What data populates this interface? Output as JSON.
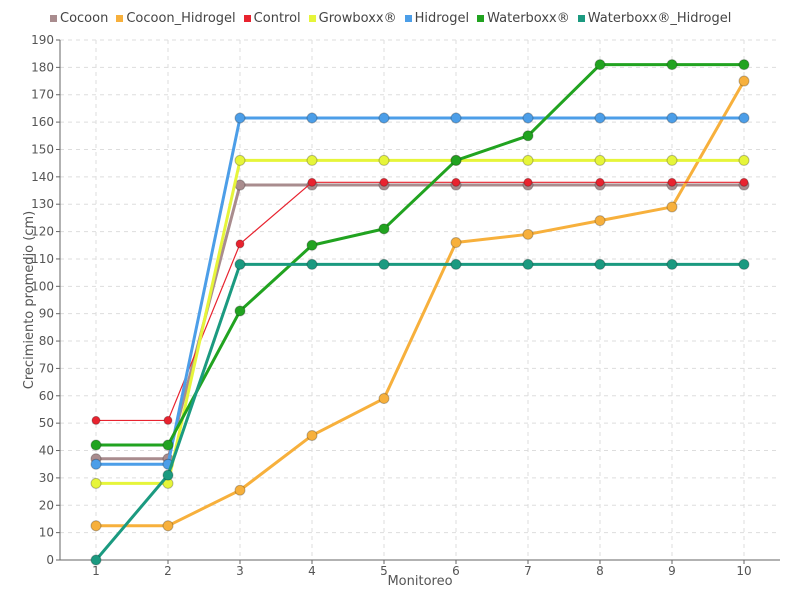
{
  "chart_data": {
    "type": "line",
    "title": "",
    "xlabel": "Monitoreo",
    "ylabel": "Crecimiento promedio (cm)",
    "x": [
      1,
      2,
      3,
      4,
      5,
      6,
      7,
      8,
      9,
      10
    ],
    "ylim": [
      0,
      190
    ],
    "ytick_step": 10,
    "grid": true,
    "legend_position": "top",
    "series": [
      {
        "name": "Cocoon",
        "color": "#a98c8e",
        "values": [
          37,
          37,
          137,
          137,
          137,
          137,
          137,
          137,
          137,
          137
        ]
      },
      {
        "name": "Cocoon_Hidrogel",
        "color": "#f7b03c",
        "values": [
          12.5,
          12.5,
          25.5,
          45.5,
          59,
          116,
          119,
          124,
          129,
          175
        ]
      },
      {
        "name": "Control",
        "color": "#e8232f",
        "values": [
          51,
          51,
          115.5,
          138,
          138,
          138,
          138,
          138,
          138,
          138
        ]
      },
      {
        "name": "Growboxx®",
        "color": "#e6f53a",
        "values": [
          28,
          28,
          146,
          146,
          146,
          146,
          146,
          146,
          146,
          146
        ]
      },
      {
        "name": "Hidrogel",
        "color": "#4c9ee8",
        "values": [
          35,
          35,
          161.5,
          161.5,
          161.5,
          161.5,
          161.5,
          161.5,
          161.5,
          161.5
        ]
      },
      {
        "name": "Waterboxx®",
        "color": "#21a320",
        "values": [
          42,
          42,
          91,
          115,
          121,
          146,
          155,
          181,
          181,
          181
        ]
      },
      {
        "name": "Waterboxx®_Hidrogel",
        "color": "#1b9a80",
        "values": [
          0,
          31,
          108,
          108,
          108,
          108,
          108,
          108,
          108,
          108
        ]
      }
    ]
  }
}
